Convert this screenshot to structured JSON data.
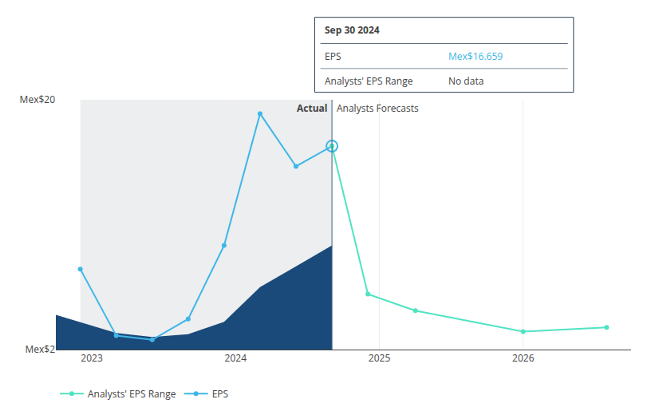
{
  "chart_data": {
    "type": "line",
    "series": [
      {
        "type": "area",
        "color": "#1a4a7a",
        "x": [
          2022.75,
          2023.17,
          2023.42,
          2023.67,
          2023.92,
          2024.17,
          2024.42,
          2024.67
        ],
        "values": [
          4.5,
          3.2,
          2.9,
          3.1,
          4.0,
          6.5,
          8.0,
          9.5
        ],
        "base": [
          2.0,
          2.0,
          2.0,
          2.0,
          2.0,
          2.0,
          2.0,
          2.0
        ]
      },
      {
        "name": "EPS",
        "color": "#3eb6e8",
        "marker": "circle",
        "x": [
          2022.92,
          2023.17,
          2023.42,
          2023.67,
          2023.92,
          2024.17,
          2024.42,
          2024.67
        ],
        "values": [
          7.8,
          3.0,
          2.7,
          4.2,
          9.5,
          19.0,
          15.2,
          16.659
        ]
      },
      {
        "name": "Analysts' EPS Range",
        "color": "#50e3c2",
        "marker": "circle",
        "x": [
          2024.67,
          2024.92,
          2025.25,
          2026.0,
          2026.58
        ],
        "values": [
          16.659,
          6.0,
          4.8,
          3.3,
          3.6
        ]
      }
    ],
    "xlim": [
      2022.75,
      2026.75
    ],
    "xticks": [
      2023,
      2024,
      2025,
      2026
    ],
    "ylim": [
      2.0,
      20.0
    ],
    "yticks": [
      {
        "value": 2.0,
        "label": "Mex$2"
      },
      {
        "value": 20.0,
        "label": "Mex$20"
      }
    ],
    "grid": true,
    "legend": "bottom",
    "annotations": [
      "Actual",
      "Analysts Forecasts",
      "Sep 30 2024",
      "EPS",
      "Mex$16.659",
      "Analysts' EPS Range",
      "No data"
    ]
  }
}
